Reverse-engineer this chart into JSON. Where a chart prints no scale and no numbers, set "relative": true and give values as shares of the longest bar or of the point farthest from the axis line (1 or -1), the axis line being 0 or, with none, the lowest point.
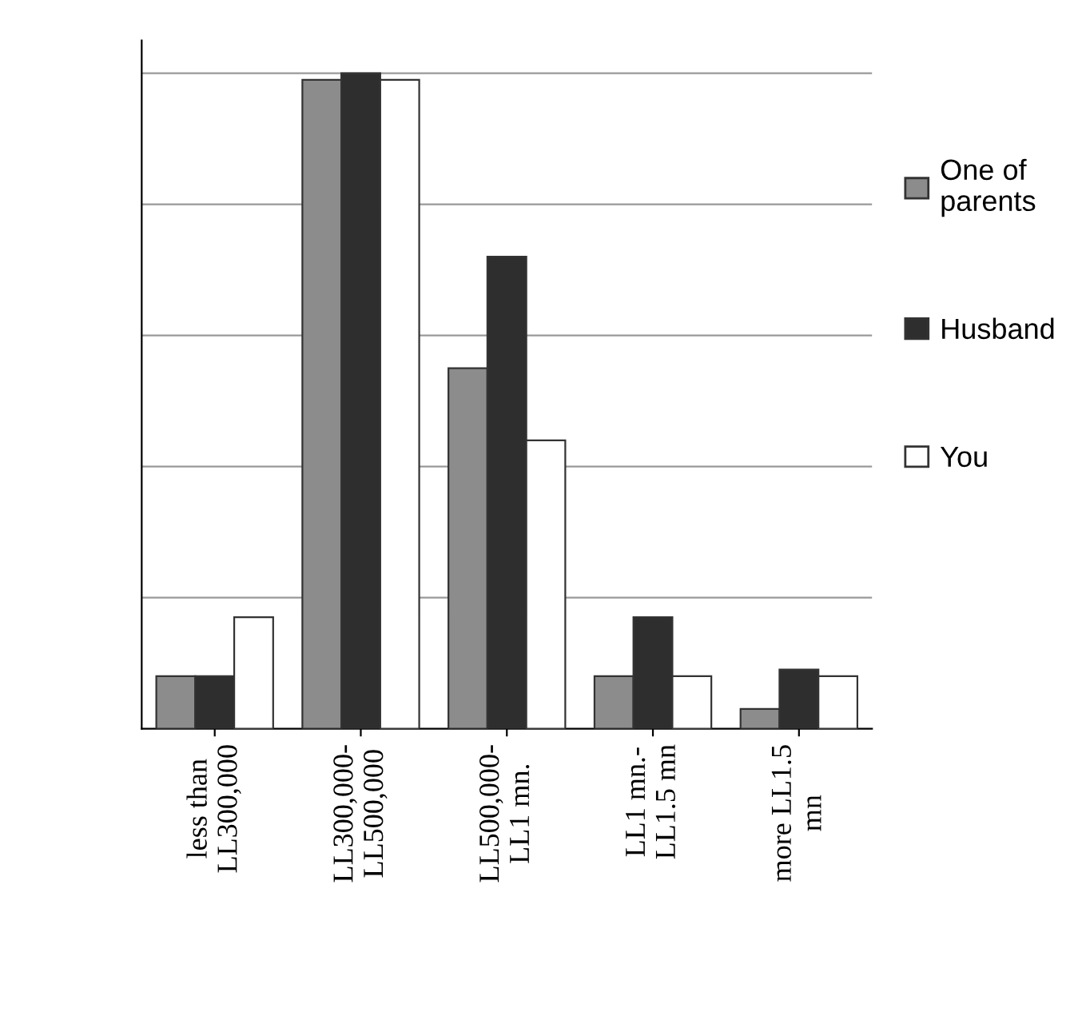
{
  "chart_data": {
    "type": "bar",
    "relative": true,
    "categories": [
      "less than\nLL300,000",
      "LL300,000-\nLL500,000",
      "LL500,000-\nLL1 mn.",
      "LL1 mn.-\nLL1.5 mn",
      "more LL1.5\nmn"
    ],
    "series": [
      {
        "name": "One of\nparents",
        "color": "#8c8c8c",
        "values": [
          0.08,
          0.99,
          0.55,
          0.08,
          0.03
        ]
      },
      {
        "name": "Husband",
        "color": "#2e2e2e",
        "values": [
          0.08,
          1,
          0.72,
          0.17,
          0.09
        ]
      },
      {
        "name": "You",
        "color": "#ffffff",
        "values": [
          0.17,
          0.99,
          0.44,
          0.08,
          0.08
        ]
      }
    ],
    "grid": "y",
    "legend": "right"
  }
}
